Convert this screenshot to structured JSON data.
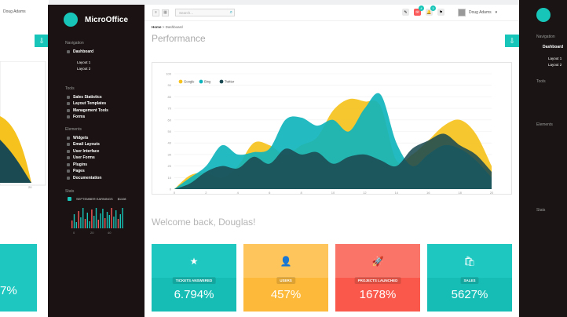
{
  "ghost": {
    "user": "Doug Adams",
    "tick_20": "20",
    "value_right": "7%"
  },
  "sidebar": {
    "brand": "MicroOffice",
    "sections": {
      "navigation": "Navigation",
      "tools": "Tools",
      "elements": "Elements",
      "stats": "Stats"
    },
    "nav": {
      "dashboard": "Dashboard",
      "layout1": "Layout 1",
      "layout2": "Layout 2"
    },
    "tools": [
      "Sales Statistics",
      "Layout Templates",
      "Management Tools",
      "Forms"
    ],
    "elements": [
      "Widgets",
      "Email Layouts",
      "User Interface",
      "User Forms",
      "Plugins",
      "Pages",
      "Documentation"
    ],
    "stats_line": "SEPTEMBER EARNINGS",
    "stats_value": "$1108",
    "spark_ticks": [
      "0",
      "20",
      "40"
    ]
  },
  "topbar": {
    "search_placeholder": "Search...",
    "user": "Doug Adams",
    "badges": [
      "4",
      "3"
    ]
  },
  "breadcrumb": {
    "home": "Home",
    "current": "Dashboard"
  },
  "page_title": "Performance",
  "welcome": "Welcome back, Douglas!",
  "colors": {
    "google": "#f6c21e",
    "bing": "#10b4bd",
    "twitter": "#1b4a52",
    "accent": "#17c6b8"
  },
  "chart_data": {
    "type": "area",
    "x": [
      0,
      1,
      2,
      3,
      4,
      5,
      6,
      7,
      8,
      9,
      10,
      11,
      12,
      13,
      14,
      15,
      16,
      17,
      18,
      19,
      20
    ],
    "series": [
      {
        "name": "Google",
        "values": [
          0,
          12,
          14,
          10,
          20,
          40,
          38,
          30,
          38,
          45,
          68,
          78,
          76,
          72,
          25,
          30,
          42,
          55,
          60,
          48,
          20
        ]
      },
      {
        "name": "Bing",
        "values": [
          0,
          10,
          20,
          38,
          30,
          32,
          35,
          60,
          62,
          55,
          60,
          50,
          70,
          82,
          40,
          20,
          30,
          38,
          35,
          25,
          10
        ]
      },
      {
        "name": "Twitter",
        "values": [
          0,
          5,
          15,
          20,
          18,
          28,
          22,
          35,
          30,
          32,
          22,
          28,
          30,
          25,
          20,
          35,
          42,
          48,
          38,
          30,
          15
        ]
      }
    ],
    "xticks": [
      "0",
      "2",
      "4",
      "6",
      "8",
      "10",
      "12",
      "14",
      "16",
      "18",
      "20"
    ],
    "yticks": [
      "0",
      "10",
      "20",
      "30",
      "40",
      "50",
      "60",
      "70",
      "80",
      "90",
      "100"
    ],
    "ylim": [
      0,
      100
    ],
    "legend": "top-left"
  },
  "tiles": [
    {
      "label": "TICKETS ANSWERED",
      "value": "6.794%",
      "color_top": "#1ec8c0",
      "color_bottom": "#15bdb5"
    },
    {
      "label": "USERS",
      "value": "457%",
      "color_top": "#fdc55c",
      "color_bottom": "#fcb93a"
    },
    {
      "label": "PROJECTS LAUNCHED",
      "value": "1678%",
      "color_top": "#fb7468",
      "color_bottom": "#f9584b"
    },
    {
      "label": "SALES",
      "value": "5627%",
      "color_top": "#1ec8c0",
      "color_bottom": "#15bdb5"
    }
  ]
}
